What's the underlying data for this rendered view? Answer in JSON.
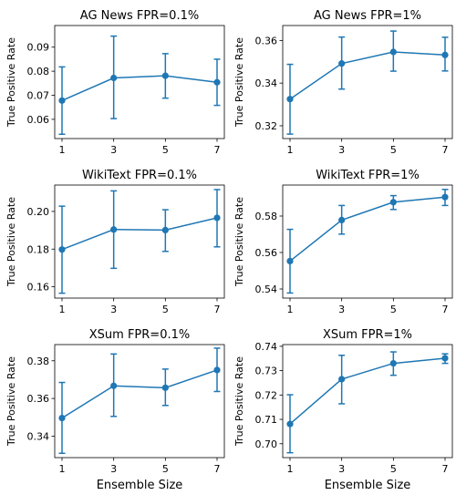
{
  "colors": {
    "series": "#1f77b4",
    "axis": "#000000",
    "background": "#ffffff"
  },
  "chart_data": [
    {
      "type": "line",
      "title": "AG News FPR=0.1%",
      "ylabel": "True Positive Rate",
      "xlabel": "",
      "x": [
        1,
        3,
        5,
        7
      ],
      "xticks": [
        "1",
        "3",
        "5",
        "7"
      ],
      "y": [
        0.0678,
        0.0772,
        0.0781,
        0.0754
      ],
      "err_low": [
        0.0538,
        0.0603,
        0.0688,
        0.0658
      ],
      "err_high": [
        0.0818,
        0.0946,
        0.0873,
        0.085
      ],
      "ylim": [
        0.052,
        0.099
      ],
      "yticks": [
        0.06,
        0.07,
        0.08,
        0.09
      ],
      "ytick_labels": [
        "0.06",
        "0.07",
        "0.08",
        "0.09"
      ]
    },
    {
      "type": "line",
      "title": "AG News FPR=1%",
      "ylabel": "True Positive Rate",
      "xlabel": "",
      "x": [
        1,
        3,
        5,
        7
      ],
      "xticks": [
        "1",
        "3",
        "5",
        "7"
      ],
      "y": [
        0.3325,
        0.3492,
        0.3546,
        0.3532
      ],
      "err_low": [
        0.3161,
        0.3372,
        0.3456,
        0.3457
      ],
      "err_high": [
        0.3488,
        0.3616,
        0.3644,
        0.3615
      ],
      "ylim": [
        0.314,
        0.367
      ],
      "yticks": [
        0.32,
        0.34,
        0.36
      ],
      "ytick_labels": [
        "0.32",
        "0.34",
        "0.36"
      ]
    },
    {
      "type": "line",
      "title": "WikiText FPR=0.1%",
      "ylabel": "True Positive Rate",
      "xlabel": "",
      "x": [
        1,
        3,
        5,
        7
      ],
      "xticks": [
        "1",
        "3",
        "5",
        "7"
      ],
      "y": [
        0.1798,
        0.1904,
        0.1901,
        0.1966
      ],
      "err_low": [
        0.1566,
        0.1698,
        0.1788,
        0.1812
      ],
      "err_high": [
        0.2028,
        0.2109,
        0.2009,
        0.2116
      ],
      "ylim": [
        0.154,
        0.214
      ],
      "yticks": [
        0.16,
        0.18,
        0.2
      ],
      "ytick_labels": [
        "0.16",
        "0.18",
        "0.20"
      ]
    },
    {
      "type": "line",
      "title": "WikiText FPR=1%",
      "ylabel": "True Positive Rate",
      "xlabel": "",
      "x": [
        1,
        3,
        5,
        7
      ],
      "xticks": [
        "1",
        "3",
        "5",
        "7"
      ],
      "y": [
        0.5553,
        0.5778,
        0.5876,
        0.5904
      ],
      "err_low": [
        0.5378,
        0.5701,
        0.5836,
        0.5858
      ],
      "err_high": [
        0.5727,
        0.5858,
        0.5912,
        0.5946
      ],
      "ylim": [
        0.535,
        0.597
      ],
      "yticks": [
        0.54,
        0.56,
        0.58
      ],
      "ytick_labels": [
        "0.54",
        "0.56",
        "0.58"
      ]
    },
    {
      "type": "line",
      "title": "XSum FPR=0.1%",
      "ylabel": "True Positive Rate",
      "xlabel": "Ensemble Size",
      "x": [
        1,
        3,
        5,
        7
      ],
      "xticks": [
        "1",
        "3",
        "5",
        "7"
      ],
      "y": [
        0.3496,
        0.3667,
        0.3657,
        0.3751
      ],
      "err_low": [
        0.3309,
        0.3505,
        0.3563,
        0.3637
      ],
      "err_high": [
        0.3685,
        0.3836,
        0.3756,
        0.3867
      ],
      "ylim": [
        0.3286,
        0.3886
      ],
      "yticks": [
        0.34,
        0.36,
        0.38
      ],
      "ytick_labels": [
        "0.34",
        "0.36",
        "0.38"
      ]
    },
    {
      "type": "line",
      "title": "XSum FPR=1%",
      "ylabel": "True Positive Rate",
      "xlabel": "Ensemble Size",
      "x": [
        1,
        3,
        5,
        7
      ],
      "xticks": [
        "1",
        "3",
        "5",
        "7"
      ],
      "y": [
        0.7081,
        0.7265,
        0.733,
        0.7351
      ],
      "err_low": [
        0.6963,
        0.7164,
        0.7281,
        0.733
      ],
      "err_high": [
        0.7201,
        0.7363,
        0.7377,
        0.7369
      ],
      "ylim": [
        0.6943,
        0.7407
      ],
      "yticks": [
        0.7,
        0.71,
        0.72,
        0.73,
        0.74
      ],
      "ytick_labels": [
        "0.70",
        "0.71",
        "0.72",
        "0.73",
        "0.74"
      ]
    }
  ]
}
